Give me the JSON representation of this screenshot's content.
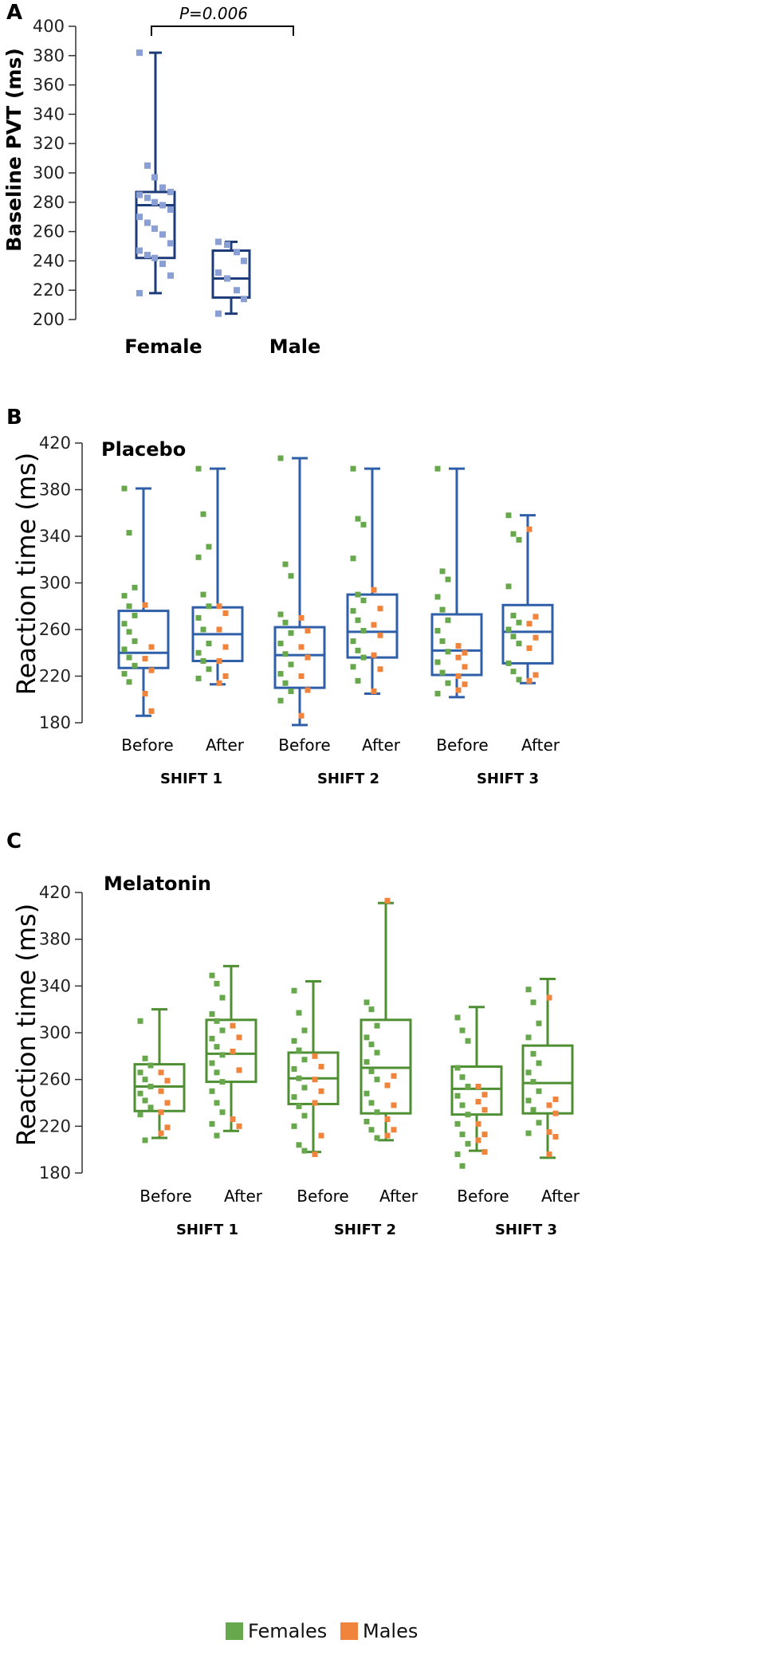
{
  "colors": {
    "female": "#68a84c",
    "male": "#f0843c",
    "blue_box": "#2f5fa8",
    "navy_box": "#1f3c7a",
    "green_box": "#4f8f33",
    "point_a": "#8aa0d4"
  },
  "legend": {
    "females": "Females",
    "males": "Males"
  },
  "chart_data": [
    {
      "panel": "A",
      "type": "box",
      "ylabel": "Baseline PVT (ms)",
      "ylim": [
        200,
        400
      ],
      "yticks": [
        "200",
        "220",
        "240",
        "260",
        "280",
        "300",
        "320",
        "340",
        "360",
        "380",
        "400"
      ],
      "categories": [
        "Female",
        "Male"
      ],
      "significance": "P=0.006",
      "boxes": [
        {
          "min": 218,
          "q1": 242,
          "median": 278,
          "q3": 287,
          "max": 382,
          "points": [
            382,
            305,
            297,
            290,
            287,
            285,
            283,
            280,
            278,
            275,
            270,
            266,
            262,
            258,
            252,
            247,
            244,
            242,
            238,
            230,
            218
          ]
        },
        {
          "min": 204,
          "q1": 215,
          "median": 228,
          "q3": 247,
          "max": 253,
          "points": [
            253,
            251,
            246,
            240,
            232,
            228,
            220,
            214,
            204
          ]
        }
      ]
    },
    {
      "panel": "B",
      "type": "box",
      "title": "Placebo",
      "ylabel": "Reaction time (ms)",
      "ylim": [
        180,
        420
      ],
      "yticks": [
        "180",
        "220",
        "260",
        "300",
        "340",
        "380",
        "420"
      ],
      "groups": [
        "SHIFT 1",
        "SHIFT 2",
        "SHIFT 3"
      ],
      "conditions": [
        "Before",
        "After"
      ],
      "boxes": [
        {
          "min": 186,
          "q1": 227,
          "median": 240,
          "q3": 276,
          "max": 381,
          "females": [
            381,
            343,
            296,
            289,
            280,
            272,
            265,
            258,
            250,
            243,
            236,
            229,
            222,
            215
          ],
          "males": [
            281,
            245,
            235,
            225,
            205,
            190
          ]
        },
        {
          "min": 213,
          "q1": 233,
          "median": 256,
          "q3": 279,
          "max": 398,
          "females": [
            398,
            359,
            331,
            322,
            290,
            280,
            270,
            260,
            248,
            240,
            233,
            226,
            218
          ],
          "males": [
            280,
            274,
            260,
            245,
            233,
            220,
            214
          ]
        },
        {
          "min": 178,
          "q1": 210,
          "median": 238,
          "q3": 262,
          "max": 407,
          "females": [
            407,
            316,
            306,
            273,
            266,
            257,
            248,
            239,
            230,
            222,
            214,
            207,
            199
          ],
          "males": [
            270,
            259,
            245,
            236,
            220,
            208,
            186
          ]
        },
        {
          "min": 205,
          "q1": 236,
          "median": 258,
          "q3": 290,
          "max": 398,
          "females": [
            398,
            355,
            350,
            321,
            290,
            285,
            276,
            268,
            259,
            250,
            242,
            236,
            228,
            216
          ],
          "males": [
            294,
            278,
            264,
            255,
            238,
            226,
            207
          ]
        },
        {
          "min": 202,
          "q1": 221,
          "median": 242,
          "q3": 273,
          "max": 398,
          "females": [
            398,
            310,
            303,
            288,
            277,
            268,
            259,
            250,
            241,
            232,
            223,
            214,
            205
          ],
          "males": [
            246,
            240,
            236,
            228,
            220,
            213,
            208
          ]
        },
        {
          "min": 214,
          "q1": 231,
          "median": 258,
          "q3": 281,
          "max": 358,
          "females": [
            358,
            342,
            337,
            297,
            272,
            266,
            260,
            254,
            248,
            231,
            224,
            217
          ],
          "males": [
            346,
            271,
            265,
            253,
            244,
            221,
            216
          ]
        }
      ]
    },
    {
      "panel": "C",
      "type": "box",
      "title": "Melatonin",
      "ylabel": "Reaction time (ms)",
      "ylim": [
        180,
        420
      ],
      "yticks": [
        "180",
        "220",
        "260",
        "300",
        "340",
        "380",
        "420"
      ],
      "groups": [
        "SHIFT 1",
        "SHIFT 2",
        "SHIFT 3"
      ],
      "conditions": [
        "Before",
        "After"
      ],
      "boxes": [
        {
          "min": 210,
          "q1": 233,
          "median": 254,
          "q3": 273,
          "max": 320,
          "females": [
            310,
            278,
            272,
            266,
            260,
            254,
            248,
            242,
            236,
            230,
            208
          ],
          "males": [
            266,
            259,
            250,
            240,
            232,
            219,
            214
          ]
        },
        {
          "min": 216,
          "q1": 258,
          "median": 282,
          "q3": 311,
          "max": 357,
          "females": [
            349,
            342,
            330,
            316,
            310,
            302,
            295,
            288,
            281,
            274,
            266,
            258,
            250,
            240,
            232,
            222,
            212
          ],
          "males": [
            306,
            296,
            284,
            268,
            226,
            220
          ]
        },
        {
          "min": 198,
          "q1": 239,
          "median": 261,
          "q3": 283,
          "max": 344,
          "females": [
            336,
            317,
            302,
            293,
            285,
            277,
            269,
            261,
            253,
            245,
            237,
            229,
            220,
            204,
            199
          ],
          "males": [
            280,
            271,
            260,
            250,
            240,
            212,
            196
          ]
        },
        {
          "min": 208,
          "q1": 231,
          "median": 270,
          "q3": 311,
          "max": 411,
          "females": [
            326,
            320,
            306,
            296,
            290,
            283,
            275,
            267,
            260,
            248,
            240,
            232,
            224,
            217,
            210
          ],
          "males": [
            413,
            263,
            255,
            238,
            226,
            217,
            212
          ]
        },
        {
          "min": 199,
          "q1": 230,
          "median": 252,
          "q3": 271,
          "max": 322,
          "females": [
            313,
            302,
            293,
            270,
            262,
            254,
            246,
            238,
            230,
            222,
            213,
            205,
            196,
            186
          ],
          "males": [
            254,
            247,
            241,
            234,
            222,
            213,
            208,
            198
          ]
        },
        {
          "min": 193,
          "q1": 231,
          "median": 257,
          "q3": 289,
          "max": 346,
          "females": [
            337,
            326,
            308,
            296,
            282,
            274,
            266,
            258,
            250,
            242,
            234,
            223,
            214
          ],
          "males": [
            330,
            243,
            238,
            231,
            215,
            211,
            196
          ]
        }
      ]
    }
  ]
}
